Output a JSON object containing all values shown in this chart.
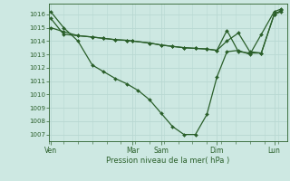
{
  "xlabel": "Pression niveau de la mer( hPa )",
  "bg_color": "#cde8e2",
  "grid_color": "#b8d8d2",
  "line_color": "#2a5f2a",
  "marker_color": "#2a5f2a",
  "ylim": [
    1006.5,
    1016.8
  ],
  "yticks": [
    1007,
    1008,
    1009,
    1010,
    1011,
    1012,
    1013,
    1014,
    1015,
    1016
  ],
  "xlim": [
    0,
    8.3
  ],
  "day_labels": [
    "Ven",
    "Mar",
    "Sam",
    "Dim",
    "Lun"
  ],
  "day_positions": [
    0.05,
    2.9,
    3.9,
    5.85,
    7.85
  ],
  "vline_positions": [
    0.05,
    2.9,
    3.9,
    5.85,
    7.85
  ],
  "series1_x": [
    0.05,
    0.5,
    1.0,
    1.5,
    1.9,
    2.3,
    2.7,
    3.1,
    3.5,
    3.9,
    4.3,
    4.7,
    5.1,
    5.5,
    5.85,
    6.2,
    6.6,
    7.0,
    7.4,
    7.85,
    8.1
  ],
  "series1_y": [
    1016.2,
    1015.0,
    1014.0,
    1012.2,
    1011.7,
    1011.2,
    1010.8,
    1010.3,
    1009.6,
    1008.6,
    1007.6,
    1007.0,
    1007.0,
    1008.5,
    1011.3,
    1013.2,
    1013.3,
    1013.0,
    1014.5,
    1016.2,
    1016.4
  ],
  "series2_x": [
    0.05,
    0.5,
    1.0,
    1.5,
    1.9,
    2.3,
    2.7,
    2.9,
    3.5,
    3.9,
    4.3,
    4.7,
    5.1,
    5.5,
    5.85,
    6.2,
    6.6,
    7.0,
    7.4,
    7.85,
    8.1
  ],
  "series2_y": [
    1015.0,
    1014.7,
    1014.4,
    1014.3,
    1014.2,
    1014.1,
    1014.05,
    1014.0,
    1013.85,
    1013.7,
    1013.6,
    1013.5,
    1013.45,
    1013.4,
    1013.3,
    1014.0,
    1014.6,
    1013.2,
    1013.1,
    1016.0,
    1016.3
  ],
  "series3_x": [
    0.05,
    0.5,
    1.0,
    1.5,
    1.9,
    2.3,
    2.7,
    2.9,
    3.5,
    3.9,
    4.3,
    4.7,
    5.1,
    5.5,
    5.85,
    6.2,
    6.6,
    7.0,
    7.4,
    7.85,
    8.1
  ],
  "series3_y": [
    1015.7,
    1014.5,
    1014.4,
    1014.3,
    1014.2,
    1014.1,
    1014.05,
    1014.0,
    1013.85,
    1013.7,
    1013.6,
    1013.5,
    1013.45,
    1013.4,
    1013.3,
    1014.8,
    1013.2,
    1013.1,
    1013.1,
    1016.0,
    1016.2
  ]
}
